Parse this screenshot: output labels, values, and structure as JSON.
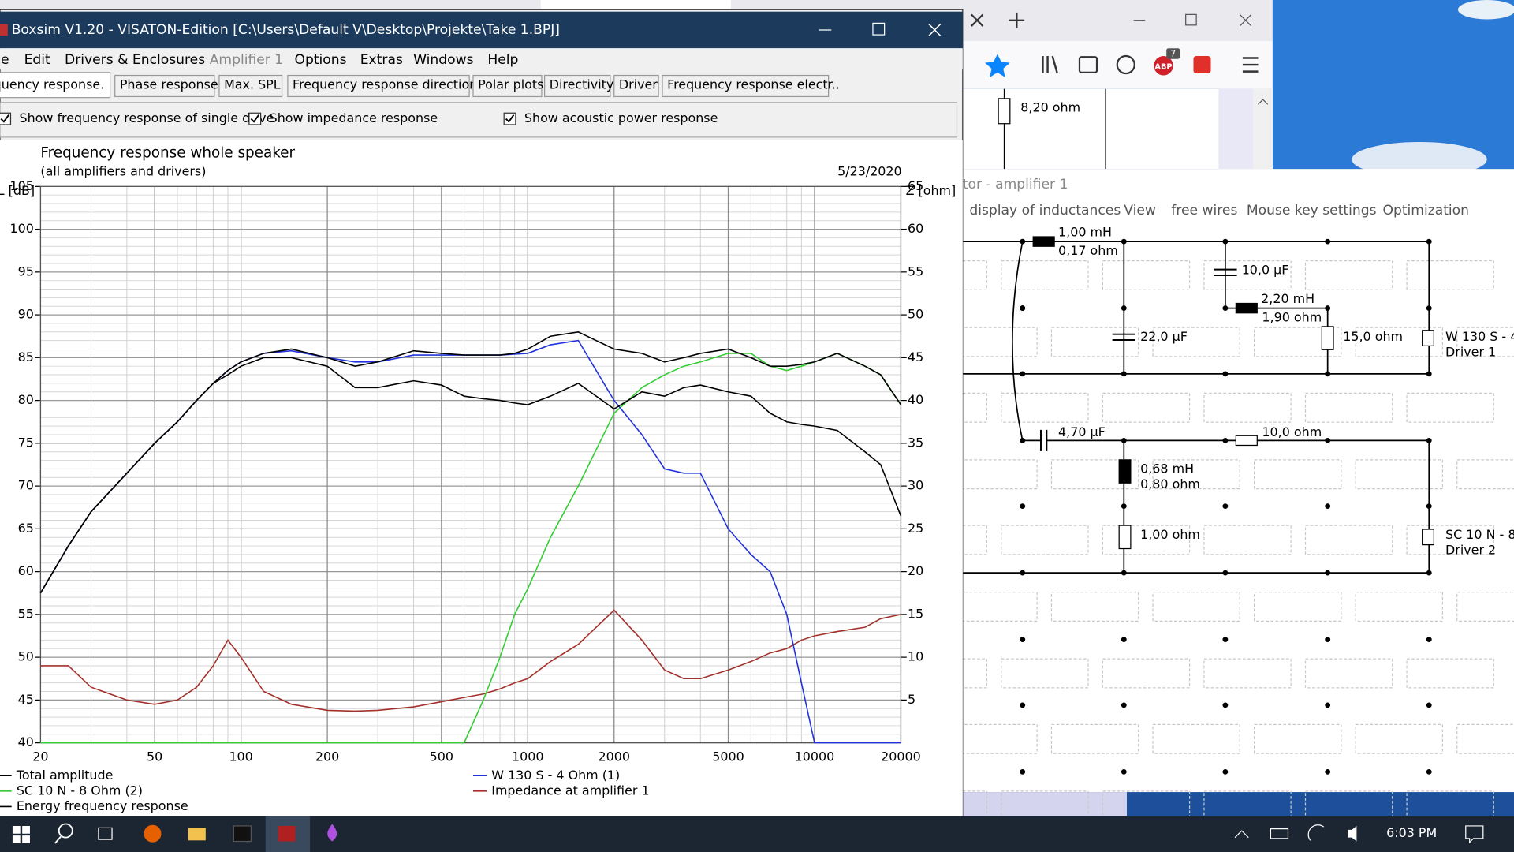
{
  "browser": {
    "abp_label": "ABP",
    "abp_count": "7",
    "content_label": "8,20 ohm"
  },
  "boxsim": {
    "title": "Boxsim V1.20 - VISATON-Edition [C:\\Users\\Default V\\Desktop\\Projekte\\Take 1.BPJ]",
    "menu": [
      "File",
      "Edit",
      "Drivers & Enclosures",
      "Amplifier 1",
      "Options",
      "Extras",
      "Windows",
      "Help"
    ],
    "tabs": [
      "Frequency response.",
      "Phase response",
      "Max. SPL",
      "Frequency response directions",
      "Polar plots",
      "Directivity",
      "Driver",
      "Frequency response electr.."
    ],
    "checkboxes": [
      {
        "label": "Show frequency response of single drive",
        "checked": true
      },
      {
        "label": "Show impedance response",
        "checked": true
      },
      {
        "label": "Show acoustic power response",
        "checked": true
      }
    ]
  },
  "chart_data": {
    "type": "line",
    "title": "Frequency response whole speaker",
    "subtitle": "(all amplifiers and drivers)",
    "date": "5/23/2020",
    "ylabel": "SPL [dB]",
    "y2label": "Z [ohm]",
    "xscale": "log",
    "grid": true,
    "x": [
      20,
      25,
      30,
      40,
      50,
      60,
      70,
      80,
      90,
      100,
      120,
      150,
      200,
      250,
      300,
      400,
      500,
      600,
      700,
      800,
      900,
      1000,
      1200,
      1500,
      2000,
      2500,
      3000,
      3500,
      4000,
      5000,
      6000,
      7000,
      8000,
      9000,
      10000,
      12000,
      15000,
      17000,
      20000
    ],
    "xlim": [
      20,
      20000
    ],
    "xticks": [
      20,
      50,
      100,
      200,
      500,
      1000,
      2000,
      5000,
      10000,
      20000
    ],
    "ylim": [
      40,
      105
    ],
    "yticks": [
      40,
      45,
      50,
      55,
      60,
      65,
      70,
      75,
      80,
      85,
      90,
      95,
      100,
      105
    ],
    "y2lim": [
      0,
      65
    ],
    "y2ticks": [
      5,
      10,
      15,
      20,
      25,
      30,
      35,
      40,
      45,
      50,
      55,
      60,
      65
    ],
    "series": [
      {
        "name": "Total amplitude",
        "color": "#000000",
        "values": [
          57.5,
          63,
          67,
          71.5,
          75,
          77.5,
          80,
          82,
          83.5,
          84.5,
          85.5,
          86,
          85,
          84,
          84.5,
          85.8,
          85.5,
          85.3,
          85.3,
          85.3,
          85.5,
          86,
          87.5,
          88,
          86,
          85.5,
          84.5,
          85,
          85.5,
          86,
          85,
          84,
          84,
          84.2,
          84.5,
          85.5,
          84,
          83,
          79.5
        ]
      },
      {
        "name": "SC 10 N - 8 Ohm (2)",
        "color": "#33cc33",
        "values": [
          40,
          40,
          40,
          40,
          40,
          40,
          40,
          40,
          40,
          40,
          40,
          40,
          40,
          40,
          40,
          40,
          40,
          40,
          45,
          50,
          55,
          58,
          64,
          70,
          78.5,
          81.5,
          83,
          84,
          84.5,
          85.5,
          85.5,
          84,
          83.5,
          84,
          84.5,
          85.5,
          84,
          83,
          79.5
        ]
      },
      {
        "name": "Energy frequency response",
        "color": "#000000",
        "values": [
          57.5,
          63,
          67,
          71.5,
          75,
          77.5,
          80,
          82,
          83,
          84,
          85,
          85,
          84,
          81.5,
          81.5,
          82.3,
          81.8,
          80.5,
          80.2,
          80,
          79.7,
          79.5,
          80.5,
          82,
          79,
          81,
          80.5,
          81.5,
          81.8,
          81,
          80.5,
          78.5,
          77.5,
          77.2,
          77,
          76.5,
          74,
          72.5,
          66.5
        ]
      },
      {
        "name": "W 130 S - 4 Ohm (1)",
        "color": "#2233dd",
        "values": [
          57.5,
          63,
          67,
          71.5,
          75,
          77.5,
          80,
          82,
          83.5,
          84.5,
          85.5,
          85.8,
          85,
          84.5,
          84.5,
          85.3,
          85.3,
          85.3,
          85.3,
          85.3,
          85.4,
          85.5,
          86.5,
          87,
          80,
          76,
          72,
          71.5,
          71.5,
          65,
          62,
          60,
          55,
          47,
          40,
          40,
          40,
          40,
          40
        ]
      },
      {
        "name": "Impedance at amplifier 1",
        "color": "#a3302a",
        "axis": "y2",
        "values": [
          9,
          9,
          6.5,
          5,
          4.5,
          5,
          6.5,
          9,
          12,
          10,
          6,
          4.5,
          3.8,
          3.7,
          3.8,
          4.2,
          4.8,
          5.3,
          5.7,
          6.3,
          7,
          7.5,
          9.5,
          11.5,
          15.5,
          12,
          8.5,
          7.5,
          7.5,
          8.5,
          9.5,
          10.5,
          11,
          12,
          12.5,
          13,
          13.5,
          14.5,
          15
        ]
      }
    ]
  },
  "crossover": {
    "title": "tor - amplifier 1",
    "menu": [
      "display of inductances",
      "View",
      "free wires",
      "Mouse key settings",
      "Optimization"
    ],
    "labels": [
      "1,00 mH",
      "0,17 ohm",
      "10,0 µF",
      "2,20 mH",
      "1,90 ohm",
      "22,0 µF",
      "15,0 ohm",
      "W 130 S - 4",
      "Driver 1",
      "4,70 µF",
      "10,0 ohm",
      "0,68 mH",
      "0,80 ohm",
      "1,00 ohm",
      "SC 10 N - 8",
      "Driver 2"
    ]
  },
  "taskbar": {
    "time": "6:03 PM"
  }
}
